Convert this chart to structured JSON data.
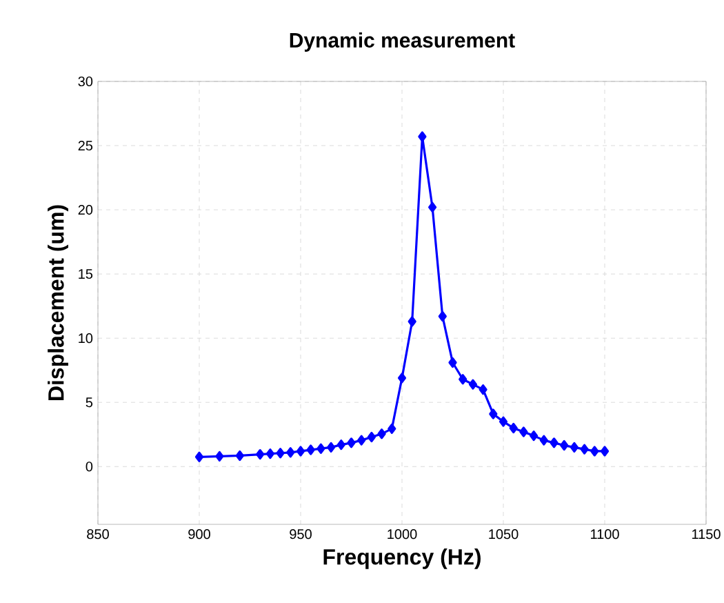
{
  "chart_data": {
    "type": "line",
    "title": "Dynamic measurement",
    "xlabel": "Frequency (Hz)",
    "ylabel": "Displacement (um)",
    "x": [
      900,
      910,
      920,
      930,
      935,
      940,
      945,
      950,
      955,
      960,
      965,
      970,
      975,
      980,
      985,
      990,
      995,
      1000,
      1005,
      1010,
      1015,
      1020,
      1025,
      1030,
      1035,
      1040,
      1045,
      1050,
      1055,
      1060,
      1065,
      1070,
      1075,
      1080,
      1085,
      1090,
      1095,
      1100
    ],
    "series": [
      {
        "color": "#0000ff",
        "values": [
          0.75,
          0.8,
          0.85,
          0.95,
          1.0,
          1.05,
          1.1,
          1.2,
          1.3,
          1.4,
          1.5,
          1.7,
          1.85,
          2.05,
          2.3,
          2.55,
          2.95,
          6.9,
          11.3,
          25.7,
          20.2,
          11.7,
          8.1,
          6.8,
          6.4,
          6.0,
          4.1,
          3.5,
          3.0,
          2.7,
          2.4,
          2.05,
          1.85,
          1.65,
          1.5,
          1.35,
          1.2,
          1.2
        ]
      }
    ],
    "xlim": [
      850,
      1150
    ],
    "ylim": [
      -4.5,
      30
    ],
    "xticks": [
      850,
      900,
      950,
      1000,
      1050,
      1100,
      1150
    ],
    "yticks": [
      0,
      5,
      10,
      15,
      20,
      25,
      30
    ],
    "grid": true,
    "marker": "diamond",
    "line_style": "solid",
    "legend": false
  }
}
